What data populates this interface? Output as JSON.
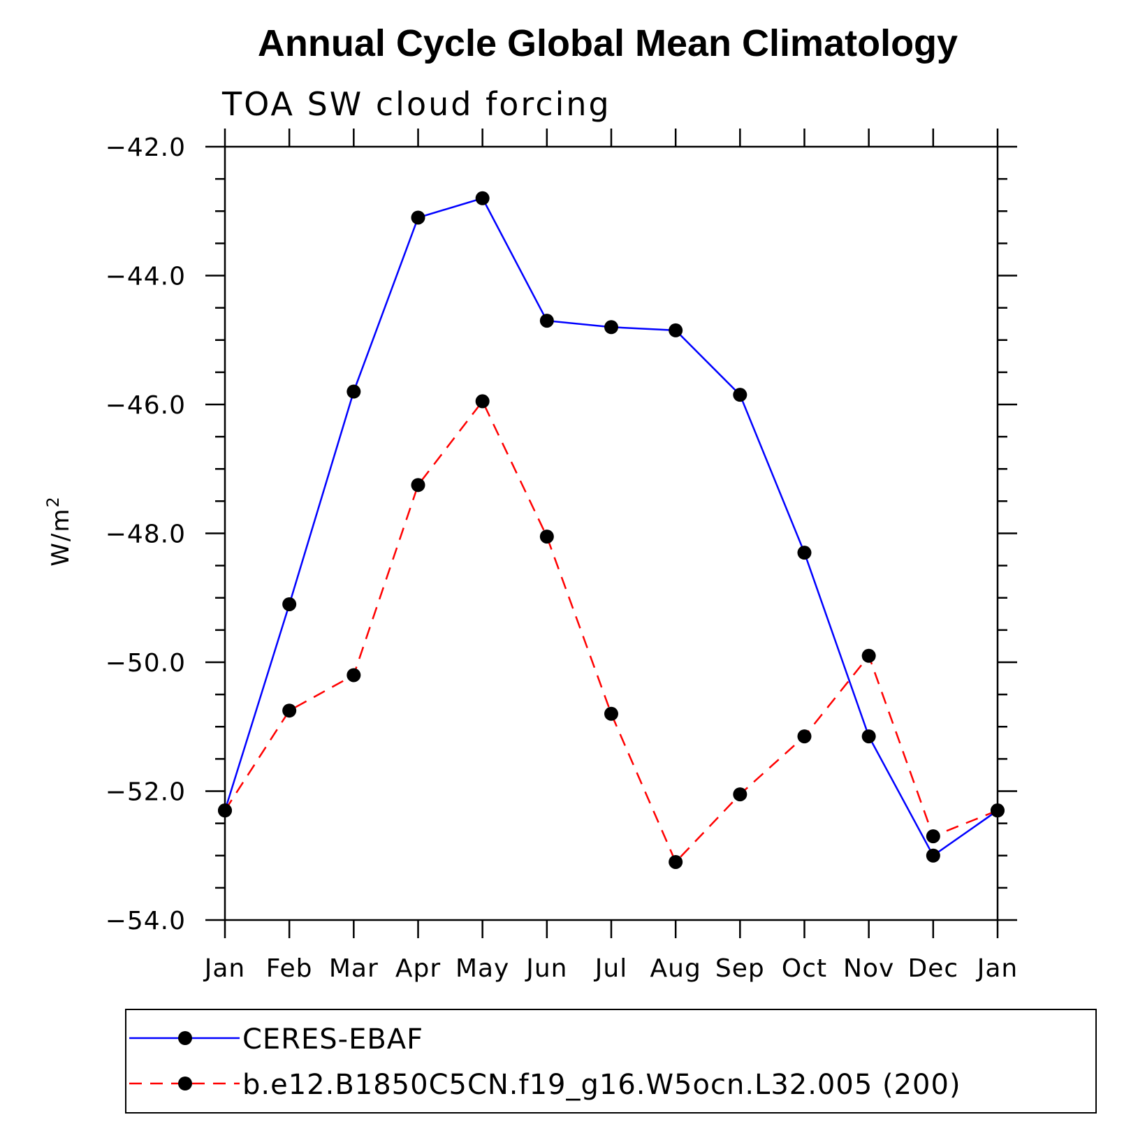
{
  "chart_data": {
    "type": "line",
    "title": "Annual Cycle Global Mean Climatology",
    "subtitle": "TOA SW cloud forcing",
    "xlabel": "",
    "ylabel": "W/m",
    "ylabel_superscript": "2",
    "categories": [
      "Jan",
      "Feb",
      "Mar",
      "Apr",
      "May",
      "Jun",
      "Jul",
      "Aug",
      "Sep",
      "Oct",
      "Nov",
      "Dec",
      "Jan"
    ],
    "ylim": [
      -54.0,
      -42.0
    ],
    "yticks": [
      "-42.0",
      "-44.0",
      "-46.0",
      "-48.0",
      "-50.0",
      "-52.0",
      "-54.0"
    ],
    "legend_position": "bottom",
    "series": [
      {
        "name": "CERES-EBAF",
        "color": "#0000ff",
        "dash": "solid",
        "values": [
          -52.3,
          -49.1,
          -45.8,
          -43.1,
          -42.8,
          -44.7,
          -44.8,
          -44.85,
          -45.85,
          -48.3,
          -51.15,
          -53.0,
          -52.3
        ]
      },
      {
        "name": "b.e12.B1850C5CN.f19_g16.W5ocn.L32.005 (200)",
        "color": "#ff0000",
        "dash": "dashed",
        "values": [
          -52.3,
          -50.75,
          -50.2,
          -47.25,
          -45.95,
          -48.05,
          -50.8,
          -53.1,
          -52.05,
          -51.15,
          -49.9,
          -52.7,
          -52.3
        ]
      }
    ]
  }
}
